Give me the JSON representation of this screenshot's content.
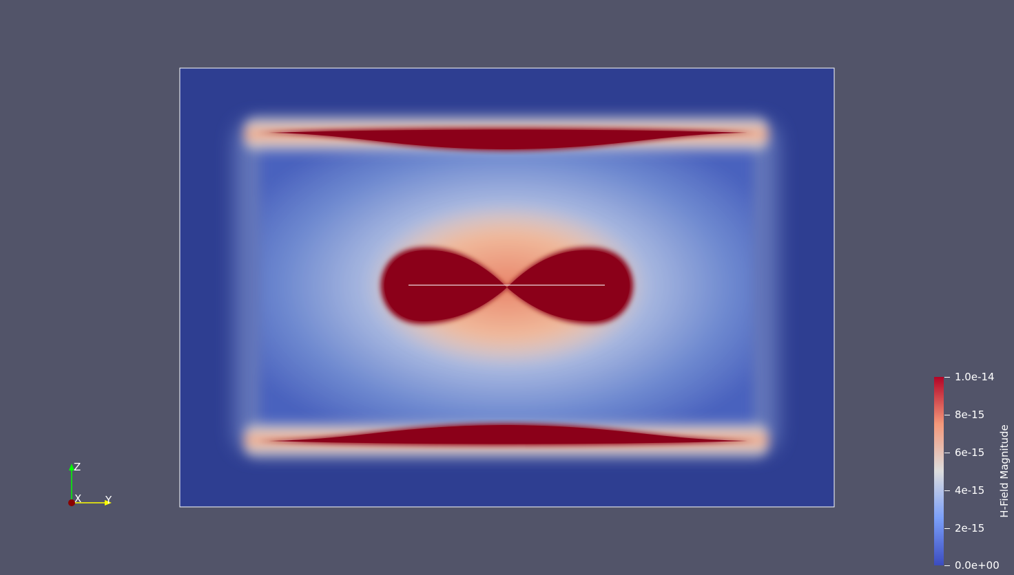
{
  "viewport": {
    "background_color": "#525469",
    "field_colormap": "Cool to Warm",
    "low_color": "#3b4cc0",
    "mid_color": "#dddddd",
    "high_color": "#b40426",
    "saturated_color": "#8b0019",
    "outside_color": "#2e3e91"
  },
  "scalar_bar": {
    "title": "H-Field Magnitude",
    "range": [
      0,
      1e-14
    ],
    "ticks": [
      "1.0e-14",
      "8e-15",
      "6e-15",
      "4e-15",
      "2e-15",
      "0.0e+00"
    ]
  },
  "orientation_axes": {
    "z_label": "Z",
    "x_label": "X",
    "y_label": "Y",
    "z_color": "#00ff00",
    "y_color": "#ffff00",
    "x_color": "#8b0000"
  }
}
